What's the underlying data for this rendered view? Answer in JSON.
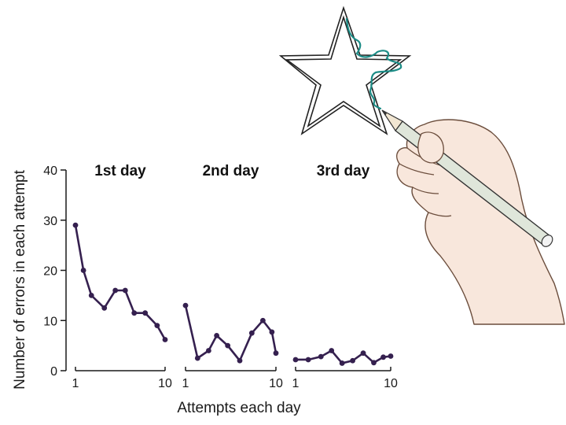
{
  "colors": {
    "series": "#35204f",
    "axis": "#1a1a1a",
    "trace": "#1c8c86",
    "skin": "#f8e7dc",
    "skin_outline": "#6b4d3c",
    "pencil": "#dfe6da"
  },
  "illustration": {
    "star_icon": "star-outline",
    "hand_icon": "hand-holding-pencil"
  },
  "chart_data": {
    "type": "line",
    "ylabel": "Number of errors in each attempt",
    "xlabel": "Attempts each day",
    "ylim": [
      0,
      40
    ],
    "yticks": [
      0,
      10,
      20,
      30,
      40
    ],
    "xlim": [
      1,
      10
    ],
    "xtick_labels": [
      "1",
      "10"
    ],
    "grid": false,
    "panels": [
      {
        "title": "1st day",
        "x": [
          1,
          1.8,
          2.6,
          3.9,
          5.0,
          6.0,
          6.9,
          8.0,
          9.2,
          10
        ],
        "y": [
          29,
          20,
          15,
          12.5,
          16,
          16,
          11.5,
          11.5,
          9,
          6.2
        ]
      },
      {
        "title": "2nd day",
        "x": [
          1,
          2.2,
          3.3,
          4.1,
          5.2,
          6.4,
          7.6,
          8.7,
          9.6,
          10
        ],
        "y": [
          13,
          2.5,
          4,
          7,
          5,
          2,
          7.5,
          10,
          7.7,
          3.5
        ]
      },
      {
        "title": "3rd day",
        "x": [
          1,
          2.2,
          3.4,
          4.4,
          5.4,
          6.4,
          7.4,
          8.4,
          9.3,
          10
        ],
        "y": [
          2.2,
          2.2,
          2.8,
          4,
          1.5,
          2,
          3.5,
          1.6,
          2.7,
          2.9
        ]
      }
    ]
  }
}
